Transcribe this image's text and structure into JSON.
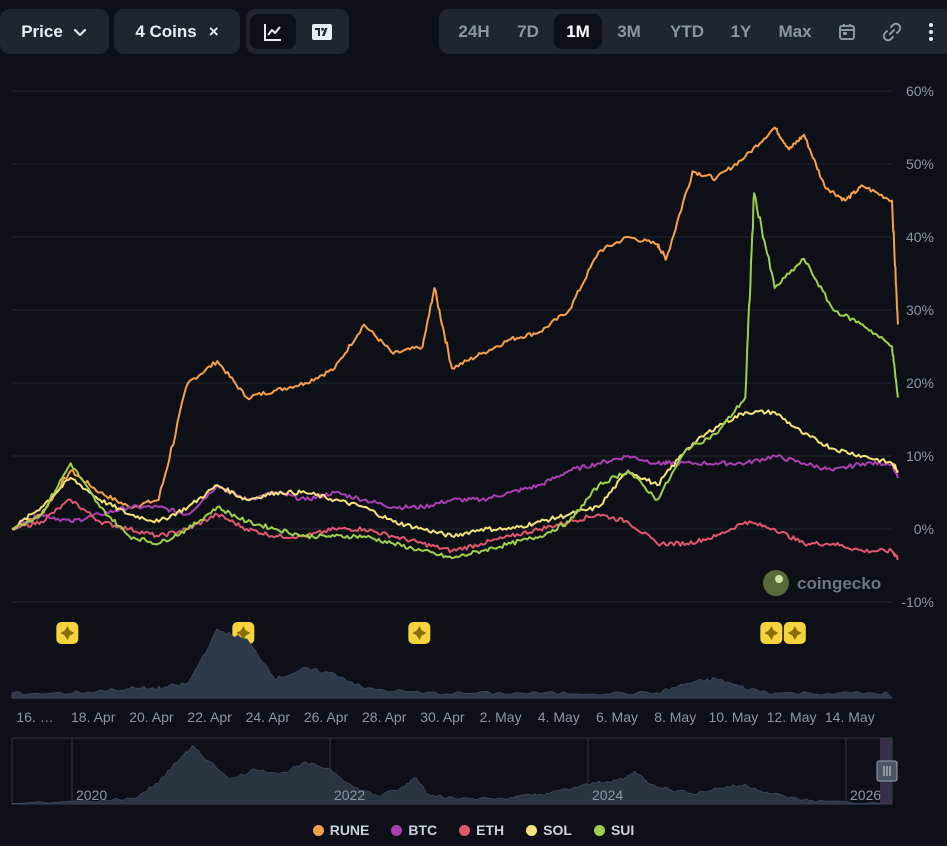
{
  "toolbar": {
    "metric_label": "Price",
    "coins_label": "4 Coins",
    "coins_clear": "×",
    "ranges": [
      "24H",
      "7D",
      "1M",
      "3M",
      "YTD",
      "1Y",
      "Max"
    ],
    "active_range": "1M"
  },
  "watermark": "coingecko",
  "colors": {
    "RUNE": "#f7a04b",
    "BTC": "#a93fb0",
    "ETH": "#e0566e",
    "SOL": "#f6e27a",
    "SUI": "#9fd04b",
    "grid": "#21262d",
    "volume": "#2d3948",
    "event_marker": "#f5d33e"
  },
  "chart_data": {
    "type": "line",
    "title": "",
    "x_tick_labels": [
      "16. …",
      "18. Apr",
      "20. Apr",
      "22. Apr",
      "24. Apr",
      "26. Apr",
      "28. Apr",
      "30. Apr",
      "2. May",
      "4. May",
      "6. May",
      "8. May",
      "10. May",
      "12. May",
      "14. May"
    ],
    "y_tick_labels": [
      "60%",
      "50%",
      "40%",
      "30%",
      "20%",
      "10%",
      "0%",
      "-10%"
    ],
    "y_unit": "percent change",
    "ylim": [
      -10,
      60
    ],
    "xlim_days": [
      0,
      30
    ],
    "grid": "horizontal",
    "legend_position": "bottom-center",
    "series": [
      {
        "name": "RUNE",
        "points": [
          [
            0,
            0
          ],
          [
            1,
            2
          ],
          [
            2,
            8
          ],
          [
            3,
            5
          ],
          [
            4,
            3
          ],
          [
            5,
            4
          ],
          [
            6,
            20
          ],
          [
            7,
            23
          ],
          [
            8,
            18
          ],
          [
            9,
            19
          ],
          [
            10,
            20
          ],
          [
            11,
            22
          ],
          [
            12,
            28
          ],
          [
            13,
            24
          ],
          [
            14,
            25
          ],
          [
            14.4,
            33
          ],
          [
            15,
            22
          ],
          [
            16,
            24
          ],
          [
            17,
            26
          ],
          [
            18,
            27
          ],
          [
            19,
            30
          ],
          [
            20,
            38
          ],
          [
            21,
            40
          ],
          [
            22,
            39
          ],
          [
            22.3,
            37
          ],
          [
            23.2,
            49
          ],
          [
            24,
            48
          ],
          [
            25,
            51
          ],
          [
            26,
            55
          ],
          [
            26.5,
            52
          ],
          [
            27,
            54
          ],
          [
            27.7,
            47
          ],
          [
            28.4,
            45
          ],
          [
            29,
            47
          ],
          [
            30,
            45
          ],
          [
            30.2,
            28
          ]
        ]
      },
      {
        "name": "BTC",
        "points": [
          [
            0,
            0
          ],
          [
            1,
            2
          ],
          [
            2,
            1
          ],
          [
            3,
            2
          ],
          [
            4,
            3
          ],
          [
            5,
            3
          ],
          [
            6,
            2
          ],
          [
            7,
            6
          ],
          [
            8,
            4
          ],
          [
            9,
            5
          ],
          [
            10,
            4
          ],
          [
            11,
            5
          ],
          [
            12,
            4
          ],
          [
            13,
            3
          ],
          [
            14,
            3
          ],
          [
            15,
            4
          ],
          [
            16,
            4
          ],
          [
            17,
            5
          ],
          [
            18,
            6
          ],
          [
            19,
            8
          ],
          [
            20,
            9
          ],
          [
            21,
            10
          ],
          [
            22,
            9
          ],
          [
            22.6,
            9
          ],
          [
            24,
            9
          ],
          [
            25,
            9
          ],
          [
            26,
            10
          ],
          [
            27,
            9
          ],
          [
            28,
            8
          ],
          [
            29,
            9
          ],
          [
            30,
            9
          ],
          [
            30.2,
            7
          ]
        ]
      },
      {
        "name": "ETH",
        "points": [
          [
            0,
            0
          ],
          [
            1,
            1
          ],
          [
            2,
            4
          ],
          [
            3,
            1
          ],
          [
            4,
            0
          ],
          [
            5,
            -1
          ],
          [
            6,
            0
          ],
          [
            7,
            2
          ],
          [
            8,
            0
          ],
          [
            9,
            -1
          ],
          [
            10,
            -1
          ],
          [
            11,
            0
          ],
          [
            12,
            0
          ],
          [
            13,
            -1
          ],
          [
            14,
            -2
          ],
          [
            15,
            -3
          ],
          [
            16,
            -2
          ],
          [
            17,
            -1
          ],
          [
            18,
            0
          ],
          [
            19,
            1
          ],
          [
            20,
            2
          ],
          [
            21,
            1
          ],
          [
            22,
            -2
          ],
          [
            23,
            -2
          ],
          [
            24,
            -1
          ],
          [
            25,
            1
          ],
          [
            26,
            0
          ],
          [
            27,
            -2
          ],
          [
            28,
            -2
          ],
          [
            29,
            -3
          ],
          [
            30,
            -3
          ],
          [
            30.2,
            -4
          ]
        ]
      },
      {
        "name": "SOL",
        "points": [
          [
            0,
            0
          ],
          [
            1,
            3
          ],
          [
            2,
            7
          ],
          [
            3,
            4
          ],
          [
            4,
            2
          ],
          [
            5,
            1
          ],
          [
            6,
            3
          ],
          [
            7,
            6
          ],
          [
            8,
            4
          ],
          [
            9,
            5
          ],
          [
            10,
            5
          ],
          [
            11,
            4
          ],
          [
            12,
            3
          ],
          [
            13,
            1
          ],
          [
            14,
            0
          ],
          [
            15,
            -1
          ],
          [
            16,
            0
          ],
          [
            17,
            0
          ],
          [
            18,
            1
          ],
          [
            19,
            2
          ],
          [
            20,
            3
          ],
          [
            21,
            8
          ],
          [
            22,
            6
          ],
          [
            23,
            11
          ],
          [
            24,
            14
          ],
          [
            25,
            16
          ],
          [
            26,
            16
          ],
          [
            27,
            13
          ],
          [
            28,
            11
          ],
          [
            29,
            10
          ],
          [
            30,
            9
          ],
          [
            30.2,
            8
          ]
        ]
      },
      {
        "name": "SUI",
        "points": [
          [
            0,
            0
          ],
          [
            1,
            2
          ],
          [
            2,
            9
          ],
          [
            3,
            3
          ],
          [
            4,
            -1
          ],
          [
            5,
            -2
          ],
          [
            6,
            0
          ],
          [
            7,
            3
          ],
          [
            8,
            1
          ],
          [
            9,
            0
          ],
          [
            10,
            -1
          ],
          [
            11,
            -1
          ],
          [
            12,
            -1
          ],
          [
            13,
            -2
          ],
          [
            14,
            -3
          ],
          [
            15,
            -4
          ],
          [
            16,
            -3
          ],
          [
            17,
            -2
          ],
          [
            18,
            -1
          ],
          [
            19,
            1
          ],
          [
            20,
            6
          ],
          [
            21,
            8
          ],
          [
            22,
            4
          ],
          [
            23,
            11
          ],
          [
            24,
            13
          ],
          [
            25,
            18
          ],
          [
            25.3,
            46
          ],
          [
            26,
            33
          ],
          [
            27,
            37
          ],
          [
            28,
            30
          ],
          [
            29,
            28
          ],
          [
            30,
            25
          ],
          [
            30.2,
            18
          ]
        ]
      }
    ],
    "volume_profile": [
      [
        0,
        1
      ],
      [
        2,
        1
      ],
      [
        4,
        2
      ],
      [
        5,
        2
      ],
      [
        6,
        3
      ],
      [
        7,
        14
      ],
      [
        8,
        12
      ],
      [
        9,
        4
      ],
      [
        10,
        6
      ],
      [
        11,
        5
      ],
      [
        12,
        2
      ],
      [
        14,
        1
      ],
      [
        16,
        1
      ],
      [
        18,
        1
      ],
      [
        20,
        1
      ],
      [
        22,
        1
      ],
      [
        23,
        3
      ],
      [
        24,
        4
      ],
      [
        25,
        2
      ],
      [
        26,
        1
      ],
      [
        28,
        1
      ],
      [
        30,
        1
      ]
    ],
    "event_markers_x": [
      1,
      7,
      13,
      25,
      25.8
    ]
  },
  "navigator": {
    "year_labels": [
      "2020",
      "2022",
      "2024",
      "2026"
    ],
    "profile": [
      [
        0,
        0
      ],
      [
        3,
        1
      ],
      [
        5,
        2
      ],
      [
        6,
        8
      ],
      [
        7,
        18
      ],
      [
        7.4,
        21
      ],
      [
        8,
        16
      ],
      [
        9,
        9
      ],
      [
        10,
        13
      ],
      [
        11,
        11
      ],
      [
        12,
        15
      ],
      [
        13,
        13
      ],
      [
        14,
        6
      ],
      [
        15,
        3
      ],
      [
        16,
        6
      ],
      [
        16.5,
        10
      ],
      [
        17,
        4
      ],
      [
        18,
        2
      ],
      [
        20,
        2
      ],
      [
        21,
        3
      ],
      [
        22,
        4
      ],
      [
        23,
        6
      ],
      [
        24,
        8
      ],
      [
        25,
        9
      ],
      [
        25.5,
        12
      ],
      [
        26,
        8
      ],
      [
        27,
        5
      ],
      [
        28,
        4
      ],
      [
        29,
        6
      ],
      [
        30,
        7
      ],
      [
        31,
        4
      ],
      [
        32,
        2
      ],
      [
        33,
        1
      ],
      [
        36,
        0
      ]
    ]
  },
  "legend": {
    "items": [
      {
        "label": "RUNE",
        "color": "#f7a04b"
      },
      {
        "label": "BTC",
        "color": "#a93fb0"
      },
      {
        "label": "ETH",
        "color": "#e0566e"
      },
      {
        "label": "SOL",
        "color": "#f6e27a"
      },
      {
        "label": "SUI",
        "color": "#9fd04b"
      }
    ]
  }
}
